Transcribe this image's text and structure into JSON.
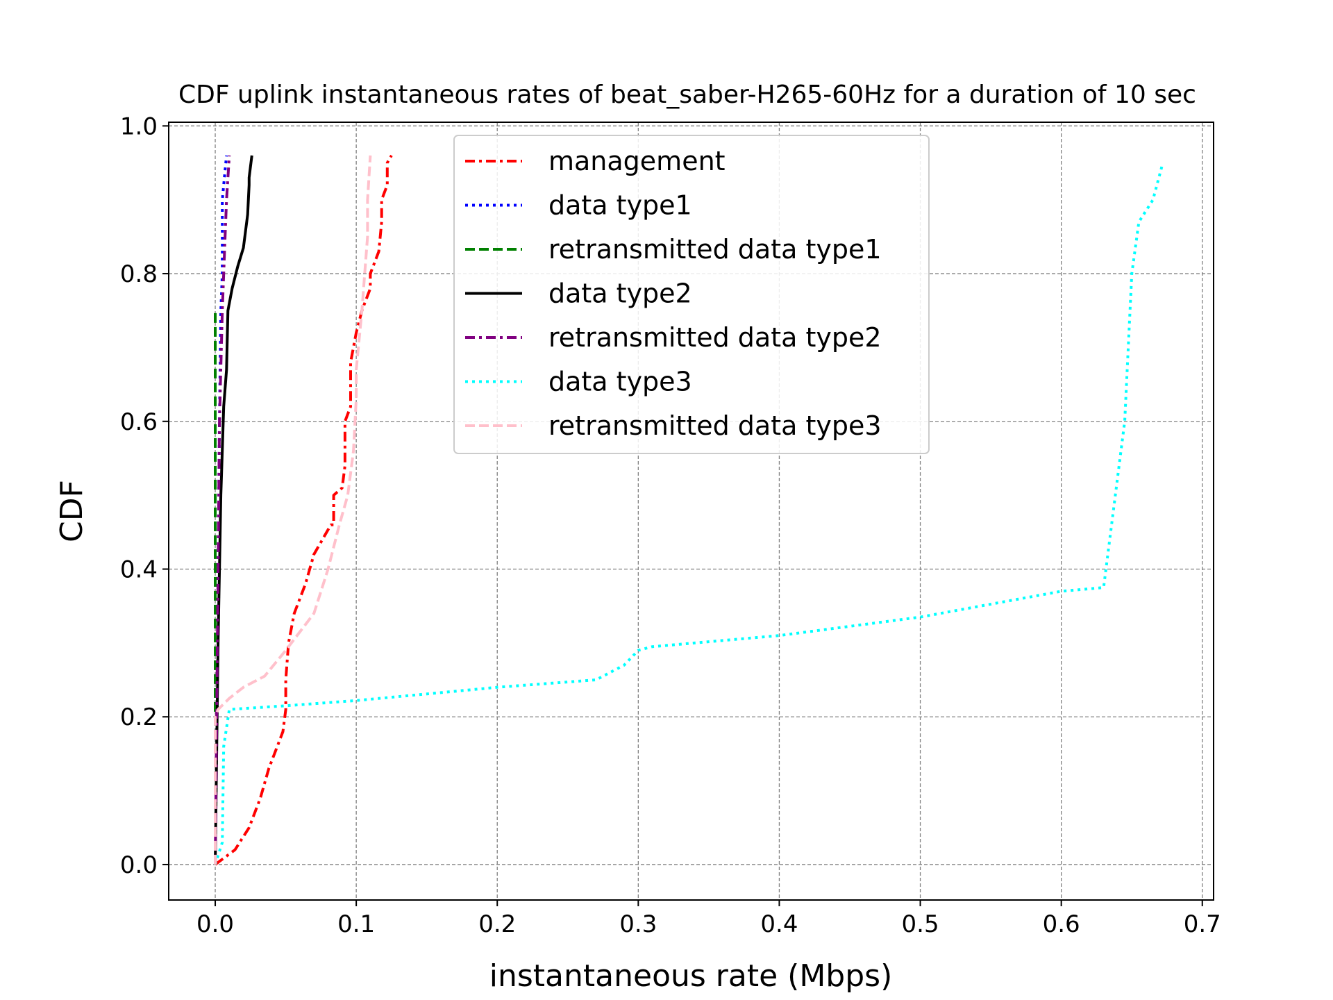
{
  "chart_data": {
    "type": "line",
    "title": "CDF uplink instantaneous rates of beat_saber-H265-60Hz for a duration of 10 sec",
    "xlabel": "instantaneous rate (Mbps)",
    "ylabel": "CDF",
    "xlim": [
      -0.033,
      0.708
    ],
    "ylim": [
      -0.048,
      1.005
    ],
    "xticks": [
      "0.0",
      "0.1",
      "0.2",
      "0.3",
      "0.4",
      "0.5",
      "0.6",
      "0.7"
    ],
    "yticks": [
      "0.0",
      "0.2",
      "0.4",
      "0.6",
      "0.8",
      "1.0"
    ],
    "grid": true,
    "legend_position": "top-center",
    "series": [
      {
        "name": "management",
        "color": "#ff0000",
        "dash": "dashdot",
        "x": [
          0.0,
          0.014,
          0.024,
          0.032,
          0.038,
          0.044,
          0.048,
          0.05,
          0.05,
          0.052,
          0.056,
          0.064,
          0.07,
          0.082,
          0.084,
          0.084,
          0.09,
          0.092,
          0.092,
          0.096,
          0.096,
          0.1,
          0.104,
          0.11,
          0.11,
          0.116,
          0.118,
          0.118,
          0.122,
          0.122,
          0.125
        ],
        "y": [
          0.0,
          0.02,
          0.05,
          0.09,
          0.13,
          0.16,
          0.18,
          0.21,
          0.25,
          0.3,
          0.34,
          0.38,
          0.42,
          0.46,
          0.46,
          0.5,
          0.51,
          0.54,
          0.6,
          0.62,
          0.68,
          0.72,
          0.75,
          0.78,
          0.8,
          0.83,
          0.87,
          0.9,
          0.92,
          0.95,
          0.96
        ]
      },
      {
        "name": "data type1",
        "color": "#0000ff",
        "dash": "dotted",
        "x": [
          0.0,
          0.001,
          0.002,
          0.003,
          0.004,
          0.005,
          0.005,
          0.007,
          0.008
        ],
        "y": [
          0.0,
          0.2,
          0.4,
          0.6,
          0.75,
          0.8,
          0.9,
          0.94,
          0.96
        ]
      },
      {
        "name": "retransmitted data type1",
        "color": "#008000",
        "dash": "dashed",
        "x": [
          0.0,
          0.0,
          0.0
        ],
        "y": [
          0.0,
          0.38,
          0.75
        ]
      },
      {
        "name": "data type2",
        "color": "#000000",
        "dash": "solid",
        "x": [
          0.0,
          0.002,
          0.004,
          0.006,
          0.008,
          0.009,
          0.012,
          0.016,
          0.02,
          0.023,
          0.024,
          0.024,
          0.026
        ],
        "y": [
          0.0,
          0.3,
          0.5,
          0.62,
          0.67,
          0.75,
          0.78,
          0.81,
          0.835,
          0.88,
          0.92,
          0.93,
          0.96
        ]
      },
      {
        "name": "retransmitted data type2",
        "color": "#800080",
        "dash": "dashdot",
        "x": [
          0.0,
          0.001,
          0.002,
          0.003,
          0.005,
          0.006,
          0.007,
          0.008,
          0.01
        ],
        "y": [
          0.0,
          0.2,
          0.4,
          0.6,
          0.75,
          0.8,
          0.85,
          0.9,
          0.96
        ]
      },
      {
        "name": "data type3",
        "color": "#00ffff",
        "dash": "dotted",
        "x": [
          0.0,
          0.005,
          0.006,
          0.01,
          0.05,
          0.1,
          0.2,
          0.27,
          0.29,
          0.3,
          0.31,
          0.4,
          0.5,
          0.6,
          0.63,
          0.645,
          0.65,
          0.655,
          0.665,
          0.672
        ],
        "y": [
          0.0,
          0.03,
          0.16,
          0.21,
          0.215,
          0.222,
          0.24,
          0.25,
          0.27,
          0.29,
          0.295,
          0.31,
          0.335,
          0.37,
          0.375,
          0.6,
          0.8,
          0.87,
          0.9,
          0.95
        ]
      },
      {
        "name": "retransmitted data type3",
        "color": "#ffc0cb",
        "dash": "dashed",
        "x": [
          0.0,
          0.0,
          0.002,
          0.01,
          0.02,
          0.035,
          0.05,
          0.07,
          0.08,
          0.088,
          0.094,
          0.098,
          0.1,
          0.1,
          0.104,
          0.106,
          0.108,
          0.108,
          0.11
        ],
        "y": [
          0.0,
          0.2,
          0.21,
          0.225,
          0.24,
          0.255,
          0.29,
          0.34,
          0.4,
          0.46,
          0.5,
          0.56,
          0.63,
          0.67,
          0.75,
          0.8,
          0.85,
          0.9,
          0.96
        ]
      }
    ]
  }
}
